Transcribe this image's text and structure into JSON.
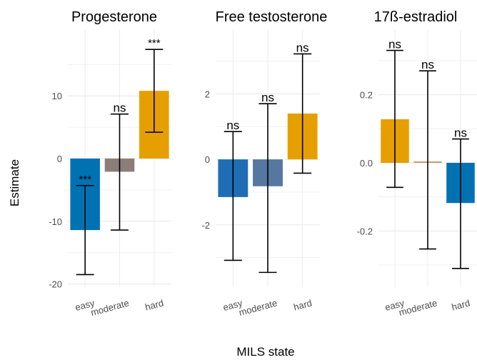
{
  "chart_data": {
    "type": "bar",
    "xlabel": "MILS state",
    "ylabel": "Estimate",
    "grid": true,
    "legend": "none",
    "error_bars": true,
    "panels": [
      {
        "title": "Progesterone",
        "categories": [
          "easy",
          "moderate",
          "hard"
        ],
        "values": [
          -11.4,
          -2.1,
          10.8
        ],
        "ci_low": [
          -18.5,
          -11.4,
          4.2
        ],
        "ci_high": [
          -4.3,
          7.1,
          17.4
        ],
        "significance": [
          "***",
          "ns",
          "***"
        ],
        "bar_colors": [
          "#0072B2",
          "#8B7E79",
          "#E69F00"
        ],
        "yticks": [
          -20,
          -10,
          0,
          10
        ],
        "ylim": [
          -20.5,
          20.5
        ]
      },
      {
        "title": "Free testosterone",
        "categories": [
          "easy",
          "moderate",
          "hard"
        ],
        "values": [
          -1.15,
          -0.82,
          1.4
        ],
        "ci_low": [
          -3.08,
          -3.45,
          -0.42
        ],
        "ci_high": [
          0.85,
          1.7,
          3.22
        ],
        "significance": [
          "ns",
          "ns",
          "ns"
        ],
        "bar_colors": [
          "#1F6EB5",
          "#5577A0",
          "#E69F00"
        ],
        "yticks": [
          -2,
          0,
          2
        ],
        "ylim": [
          -3.9,
          3.95
        ]
      },
      {
        "title": "17ß-estradiol",
        "categories": [
          "easy",
          "moderate",
          "hard"
        ],
        "values": [
          0.128,
          0.004,
          -0.118
        ],
        "ci_low": [
          -0.072,
          -0.253,
          -0.31
        ],
        "ci_high": [
          0.33,
          0.27,
          0.07
        ],
        "significance": [
          "ns",
          "ns",
          "ns"
        ],
        "bar_colors": [
          "#E69F00",
          "#C49A6C",
          "#0072B2"
        ],
        "yticks": [
          -0.2,
          0.0,
          0.2
        ],
        "ytick_labels": [
          "-0.2",
          "0.0",
          "0.2"
        ],
        "ylim": [
          -0.365,
          0.39
        ]
      }
    ]
  }
}
